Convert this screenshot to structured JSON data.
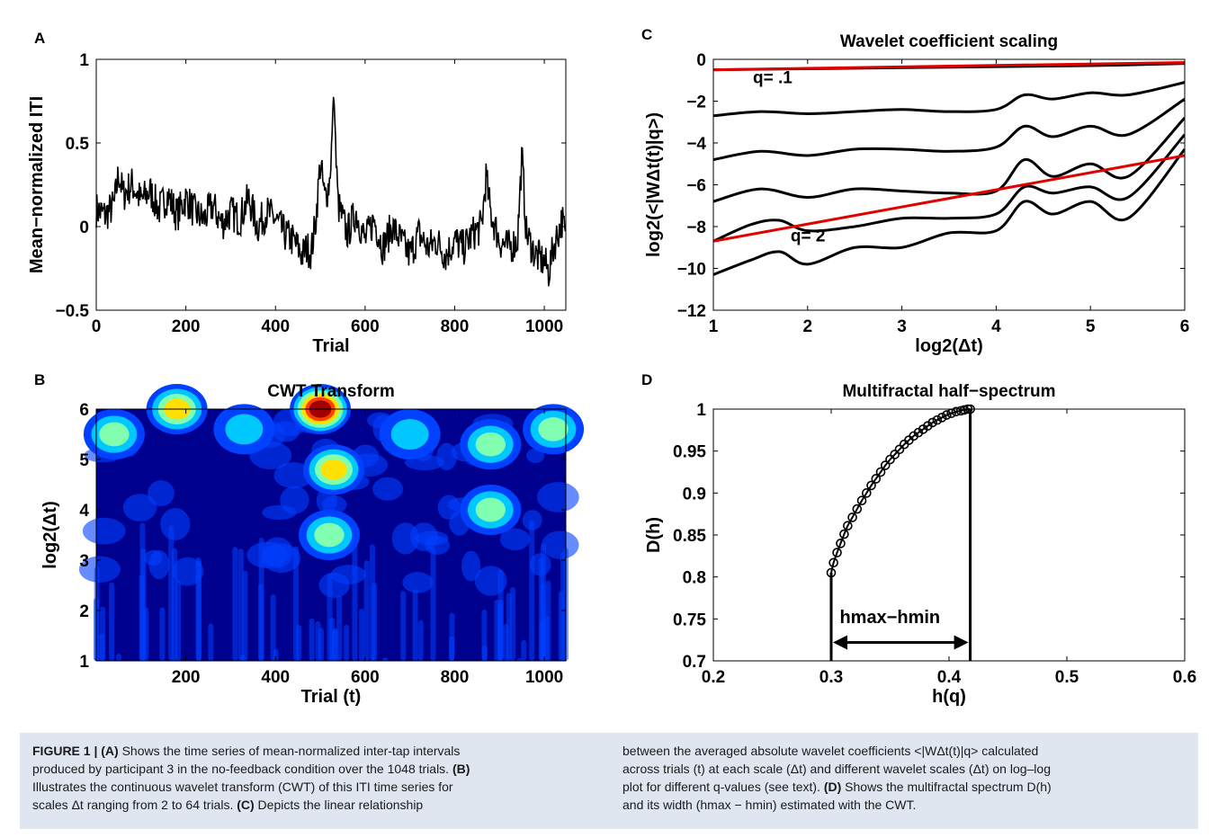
{
  "panels": {
    "A": {
      "letter": "A"
    },
    "B": {
      "letter": "B"
    },
    "C": {
      "letter": "C"
    },
    "D": {
      "letter": "D"
    }
  },
  "chart_data": [
    {
      "id": "A",
      "type": "line",
      "title": "",
      "xlabel": "Trial",
      "ylabel": "Mean−normalized ITI",
      "xlim": [
        0,
        1048
      ],
      "ylim": [
        -0.5,
        1
      ],
      "xticks": [
        0,
        200,
        400,
        600,
        800,
        1000
      ],
      "yticks": [
        -0.5,
        0,
        0.5,
        1
      ],
      "ytick_labels": [
        "−0.5",
        "0",
        "0.5",
        "1"
      ],
      "series": [
        {
          "color": "#000000",
          "note_values": "approximate envelope of the ITI series",
          "x": [
            0,
            20,
            40,
            50,
            60,
            80,
            100,
            120,
            140,
            160,
            180,
            200,
            220,
            240,
            260,
            280,
            300,
            320,
            340,
            360,
            380,
            400,
            420,
            440,
            460,
            470,
            480,
            490,
            500,
            510,
            520,
            530,
            540,
            560,
            580,
            600,
            620,
            640,
            660,
            680,
            700,
            720,
            740,
            760,
            780,
            800,
            820,
            840,
            860,
            870,
            880,
            900,
            920,
            940,
            950,
            960,
            980,
            1000,
            1010,
            1020,
            1040,
            1048
          ],
          "y": [
            0.12,
            0.08,
            0.15,
            0.38,
            0.22,
            0.3,
            0.18,
            0.25,
            0.12,
            0.22,
            0.08,
            0.2,
            0.1,
            0.05,
            0.15,
            0.02,
            0.1,
            0.05,
            0.2,
            0.0,
            0.1,
            0.05,
            -0.05,
            -0.1,
            -0.2,
            -0.15,
            -0.18,
            0.05,
            0.45,
            0.2,
            0.3,
            0.8,
            0.15,
            -0.05,
            0.1,
            -0.1,
            0.05,
            -0.15,
            0.0,
            -0.1,
            -0.2,
            -0.05,
            -0.15,
            -0.1,
            -0.2,
            -0.1,
            -0.15,
            -0.05,
            0.0,
            0.35,
            0.1,
            -0.1,
            -0.15,
            -0.1,
            0.5,
            -0.05,
            -0.2,
            -0.25,
            -0.32,
            -0.15,
            0.05,
            -0.1
          ]
        }
      ]
    },
    {
      "id": "B",
      "type": "heatmap",
      "title": "CWT Transform",
      "xlabel": "Trial (t)",
      "ylabel": "log2(Δt)",
      "xlim": [
        0,
        1048
      ],
      "ylim": [
        1,
        6
      ],
      "xticks": [
        200,
        400,
        600,
        800,
        1000
      ],
      "yticks": [
        1,
        2,
        3,
        4,
        5,
        6
      ],
      "colormap": [
        "#00008f",
        "#0040ff",
        "#00c8ff",
        "#80ffb0",
        "#ffe000",
        "#ff4000",
        "#a00000"
      ],
      "hotspots": [
        {
          "x": 500,
          "y": 6.0,
          "v": 1.0
        },
        {
          "x": 180,
          "y": 6.0,
          "v": 0.6
        },
        {
          "x": 40,
          "y": 5.5,
          "v": 0.5
        },
        {
          "x": 530,
          "y": 4.8,
          "v": 0.65
        },
        {
          "x": 520,
          "y": 3.5,
          "v": 0.45
        },
        {
          "x": 880,
          "y": 4.0,
          "v": 0.45
        },
        {
          "x": 880,
          "y": 5.3,
          "v": 0.5
        },
        {
          "x": 1020,
          "y": 5.6,
          "v": 0.45
        },
        {
          "x": 330,
          "y": 5.6,
          "v": 0.35
        },
        {
          "x": 700,
          "y": 5.5,
          "v": 0.3
        }
      ]
    },
    {
      "id": "C",
      "type": "line",
      "title": "Wavelet coefficient scaling",
      "xlabel": "log2(Δt)",
      "ylabel": "log2(<|WΔt(t)|q>)",
      "xlim": [
        1,
        6
      ],
      "ylim": [
        -12,
        0
      ],
      "xticks": [
        1,
        2,
        3,
        4,
        5,
        6
      ],
      "yticks": [
        -12,
        -10,
        -8,
        -6,
        -4,
        -2,
        0
      ],
      "ytick_labels": [
        "−12",
        "−10",
        "−8",
        "−6",
        "−4",
        "−2",
        "0"
      ],
      "annotations": [
        "q= .1",
        "q= 2"
      ],
      "series": [
        {
          "color": "#000000",
          "x": [
            1,
            2,
            3,
            4,
            5,
            6
          ],
          "y": [
            -0.5,
            -0.45,
            -0.4,
            -0.35,
            -0.3,
            -0.2
          ]
        },
        {
          "color": "#000000",
          "x": [
            1,
            1.5,
            2,
            2.5,
            3,
            3.5,
            4,
            4.3,
            4.6,
            5,
            5.4,
            6
          ],
          "y": [
            -2.7,
            -2.5,
            -2.6,
            -2.5,
            -2.4,
            -2.5,
            -2.4,
            -1.7,
            -1.9,
            -1.6,
            -1.7,
            -1.1
          ]
        },
        {
          "color": "#000000",
          "x": [
            1,
            1.5,
            2,
            2.5,
            3,
            3.5,
            4,
            4.3,
            4.6,
            5,
            5.4,
            6
          ],
          "y": [
            -4.8,
            -4.4,
            -4.6,
            -4.3,
            -4.3,
            -4.4,
            -4.2,
            -3.2,
            -3.7,
            -3.2,
            -3.6,
            -1.9
          ]
        },
        {
          "color": "#000000",
          "x": [
            1,
            1.5,
            2,
            2.5,
            3,
            3.5,
            4,
            4.3,
            4.6,
            5,
            5.4,
            6
          ],
          "y": [
            -6.8,
            -6.2,
            -6.6,
            -6.2,
            -6.3,
            -6.4,
            -6.3,
            -4.8,
            -5.6,
            -5.0,
            -5.6,
            -2.8
          ]
        },
        {
          "color": "#000000",
          "x": [
            1,
            1.4,
            1.7,
            2,
            2.5,
            3,
            3.5,
            4,
            4.3,
            4.6,
            5,
            5.4,
            6
          ],
          "y": [
            -8.7,
            -7.9,
            -7.7,
            -8.2,
            -8.0,
            -7.6,
            -7.6,
            -7.4,
            -6.1,
            -6.4,
            -6.1,
            -6.6,
            -3.6
          ]
        },
        {
          "color": "#000000",
          "x": [
            1,
            1.4,
            1.7,
            2,
            2.5,
            3,
            3.5,
            4,
            4.3,
            4.6,
            5,
            5.4,
            6
          ],
          "y": [
            -10.3,
            -9.6,
            -9.2,
            -9.8,
            -9.0,
            -9.0,
            -8.3,
            -8.2,
            -6.8,
            -7.4,
            -6.8,
            -7.6,
            -4.3
          ]
        },
        {
          "color": "#e00000",
          "x": [
            1,
            6
          ],
          "y": [
            -0.5,
            -0.15
          ]
        },
        {
          "color": "#e00000",
          "x": [
            1,
            6
          ],
          "y": [
            -8.7,
            -4.6
          ]
        }
      ]
    },
    {
      "id": "D",
      "type": "scatter",
      "title": "Multifractal half−spectrum",
      "xlabel": "h(q)",
      "ylabel": "D(h)",
      "xlim": [
        0.2,
        0.6
      ],
      "ylim": [
        0.7,
        1
      ],
      "xticks": [
        0.2,
        0.3,
        0.4,
        0.5,
        0.6
      ],
      "yticks": [
        0.7,
        0.75,
        0.8,
        0.85,
        0.9,
        0.95,
        1
      ],
      "xtick_labels": [
        "0.2",
        "0.3",
        "0.4",
        "0.5",
        "0.6"
      ],
      "ytick_labels": [
        "0.7",
        "0.75",
        "0.8",
        "0.85",
        "0.9",
        "0.95",
        "1"
      ],
      "annotation": "hmax−hmin",
      "h_min": 0.3,
      "h_max": 0.418,
      "series": [
        {
          "color": "#000000",
          "x": [
            0.3,
            0.302,
            0.305,
            0.308,
            0.311,
            0.314,
            0.318,
            0.322,
            0.326,
            0.33,
            0.334,
            0.338,
            0.342,
            0.346,
            0.35,
            0.354,
            0.358,
            0.362,
            0.366,
            0.37,
            0.374,
            0.378,
            0.382,
            0.386,
            0.39,
            0.394,
            0.398,
            0.402,
            0.406,
            0.41,
            0.413,
            0.416,
            0.418
          ],
          "y": [
            0.805,
            0.817,
            0.829,
            0.84,
            0.851,
            0.861,
            0.871,
            0.881,
            0.891,
            0.9,
            0.909,
            0.917,
            0.925,
            0.933,
            0.94,
            0.946,
            0.952,
            0.958,
            0.963,
            0.968,
            0.972,
            0.976,
            0.98,
            0.984,
            0.987,
            0.99,
            0.993,
            0.995,
            0.997,
            0.998,
            0.999,
            1.0,
            1.0
          ]
        }
      ]
    }
  ],
  "caption": {
    "left_lines": [
      [
        {
          "b": "FIGURE 1 | "
        },
        {
          "b": "(A)"
        },
        {
          "t": " Shows the time series of mean-normalized inter-tap intervals"
        }
      ],
      [
        {
          "t": "produced by participant 3 in the no-feedback condition over the 1048 trials. "
        },
        {
          "b": "(B)"
        }
      ],
      [
        {
          "t": "Illustrates the continuous wavelet transform (CWT) of this ITI time series for"
        }
      ],
      [
        {
          "t": "scales Δt ranging from 2 to 64 trials. "
        },
        {
          "b": "(C)"
        },
        {
          "t": " Depicts the linear relationship"
        }
      ]
    ],
    "right_lines": [
      [
        {
          "t": "between the averaged absolute wavelet coefficients <|WΔt(t)|q> calculated"
        }
      ],
      [
        {
          "t": "across trials (t) at each scale (Δt) and different wavelet scales (Δt) on log–log"
        }
      ],
      [
        {
          "t": "plot for different q-values (see text). "
        },
        {
          "b": "(D)"
        },
        {
          "t": " Shows the multifractal spectrum D(h)"
        }
      ],
      [
        {
          "t": "and its width (hmax − hmin) estimated with the CWT."
        }
      ]
    ]
  }
}
